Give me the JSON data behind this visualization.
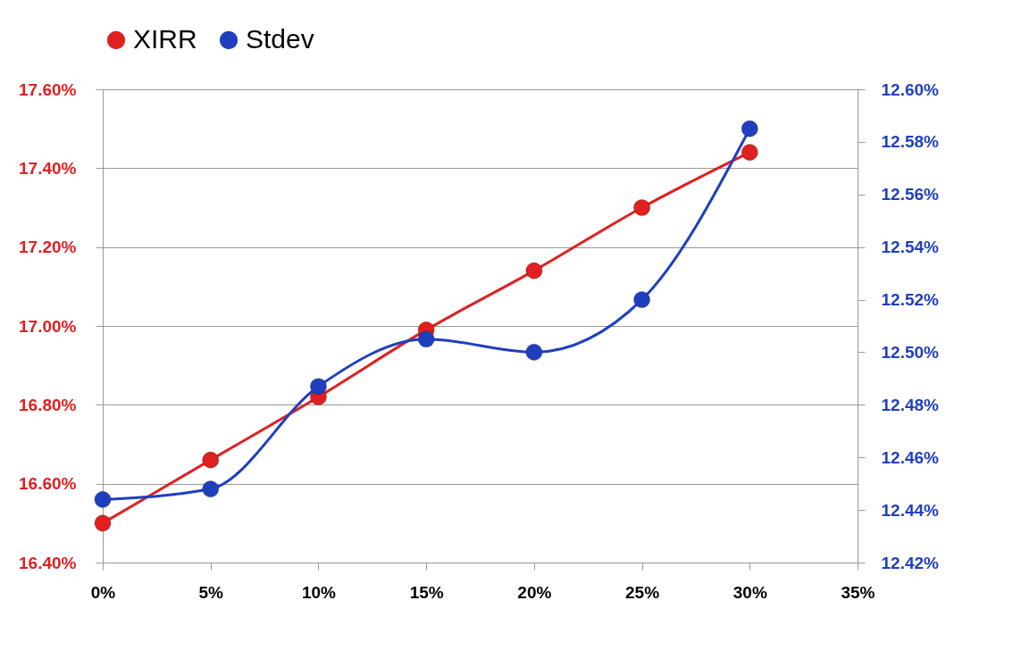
{
  "chart_data": {
    "type": "line",
    "x": [
      0,
      5,
      10,
      15,
      20,
      25,
      30
    ],
    "xlim": [
      0,
      35
    ],
    "xticks": [
      {
        "value": 0,
        "label": "0%"
      },
      {
        "value": 5,
        "label": "5%"
      },
      {
        "value": 10,
        "label": "10%"
      },
      {
        "value": 15,
        "label": "15%"
      },
      {
        "value": 20,
        "label": "20%"
      },
      {
        "value": 25,
        "label": "25%"
      },
      {
        "value": 30,
        "label": "30%"
      },
      {
        "value": 35,
        "label": "35%"
      }
    ],
    "ylim": [
      16.4,
      17.6
    ],
    "yticks": [
      {
        "value": 16.4,
        "label": "16.40%"
      },
      {
        "value": 16.6,
        "label": "16.60%"
      },
      {
        "value": 16.8,
        "label": "16.80%"
      },
      {
        "value": 17.0,
        "label": "17.00%"
      },
      {
        "value": 17.2,
        "label": "17.20%"
      },
      {
        "value": 17.4,
        "label": "17.40%"
      },
      {
        "value": 17.6,
        "label": "17.60%"
      }
    ],
    "y2lim": [
      12.42,
      12.6
    ],
    "y2ticks": [
      {
        "value": 12.42,
        "label": "12.42%"
      },
      {
        "value": 12.44,
        "label": "12.44%"
      },
      {
        "value": 12.46,
        "label": "12.46%"
      },
      {
        "value": 12.48,
        "label": "12.48%"
      },
      {
        "value": 12.5,
        "label": "12.50%"
      },
      {
        "value": 12.52,
        "label": "12.52%"
      },
      {
        "value": 12.54,
        "label": "12.54%"
      },
      {
        "value": 12.56,
        "label": "12.56%"
      },
      {
        "value": 12.58,
        "label": "12.58%"
      },
      {
        "value": 12.6,
        "label": "12.60%"
      }
    ],
    "series": [
      {
        "name": "XIRR",
        "color": "#e02020",
        "values": [
          16.5,
          16.66,
          16.82,
          16.99,
          17.14,
          17.3,
          17.44
        ]
      },
      {
        "name": "Stdev",
        "color": "#1f3fbf",
        "axis": "y2",
        "values": [
          12.444,
          12.448,
          12.487,
          12.505,
          12.5,
          12.52,
          12.585
        ]
      }
    ],
    "grid": "y",
    "legend": "top",
    "marker": "circle",
    "line_style": "solid"
  }
}
